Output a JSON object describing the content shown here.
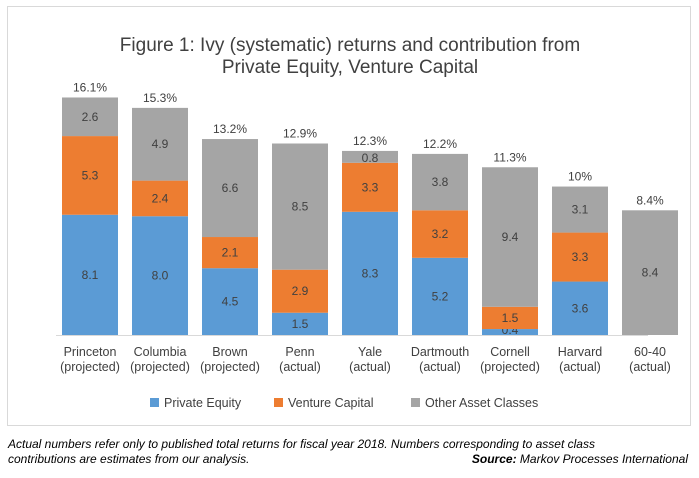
{
  "chart_data": {
    "type": "bar",
    "stacked": true,
    "title_lines": [
      "Figure 1: Ivy (systematic) returns and contribution from",
      "Private Equity, Venture Capital"
    ],
    "categories": [
      [
        "Princeton",
        "(projected)"
      ],
      [
        "Columbia",
        "(projected)"
      ],
      [
        "Brown",
        "(projected)"
      ],
      [
        "Penn",
        "(actual)"
      ],
      [
        "Yale",
        "(actual)"
      ],
      [
        "Dartmouth",
        "(actual)"
      ],
      [
        "Cornell",
        "(projected)"
      ],
      [
        "Harvard",
        "(actual)"
      ],
      [
        "60-40",
        "(actual)"
      ]
    ],
    "series": [
      {
        "name": "Private Equity",
        "color": "#5b9bd5",
        "values": [
          8.1,
          8.0,
          4.5,
          1.5,
          8.3,
          5.2,
          0.4,
          3.6,
          0
        ]
      },
      {
        "name": "Venture Capital",
        "color": "#ed7d31",
        "values": [
          5.3,
          2.4,
          2.1,
          2.9,
          3.3,
          3.2,
          1.5,
          3.3,
          0
        ]
      },
      {
        "name": "Other Asset Classes",
        "color": "#a5a5a5",
        "values": [
          2.6,
          4.9,
          6.6,
          8.5,
          0.8,
          3.8,
          9.4,
          3.1,
          8.4
        ]
      }
    ],
    "totals": [
      "16.1%",
      "15.3%",
      "13.2%",
      "12.9%",
      "12.3%",
      "12.2%",
      "11.3%",
      "10%",
      "8.4%"
    ],
    "ylim": [
      0,
      16.1
    ],
    "grid": false,
    "legend_position": "bottom"
  },
  "footnote": {
    "line1": "Actual numbers refer only to published total returns for fiscal year 2018. Numbers corresponding to asset class",
    "line2": "contributions are estimates from our analysis.",
    "source_label": "Source:",
    "source_text": " Markov Processes International"
  }
}
